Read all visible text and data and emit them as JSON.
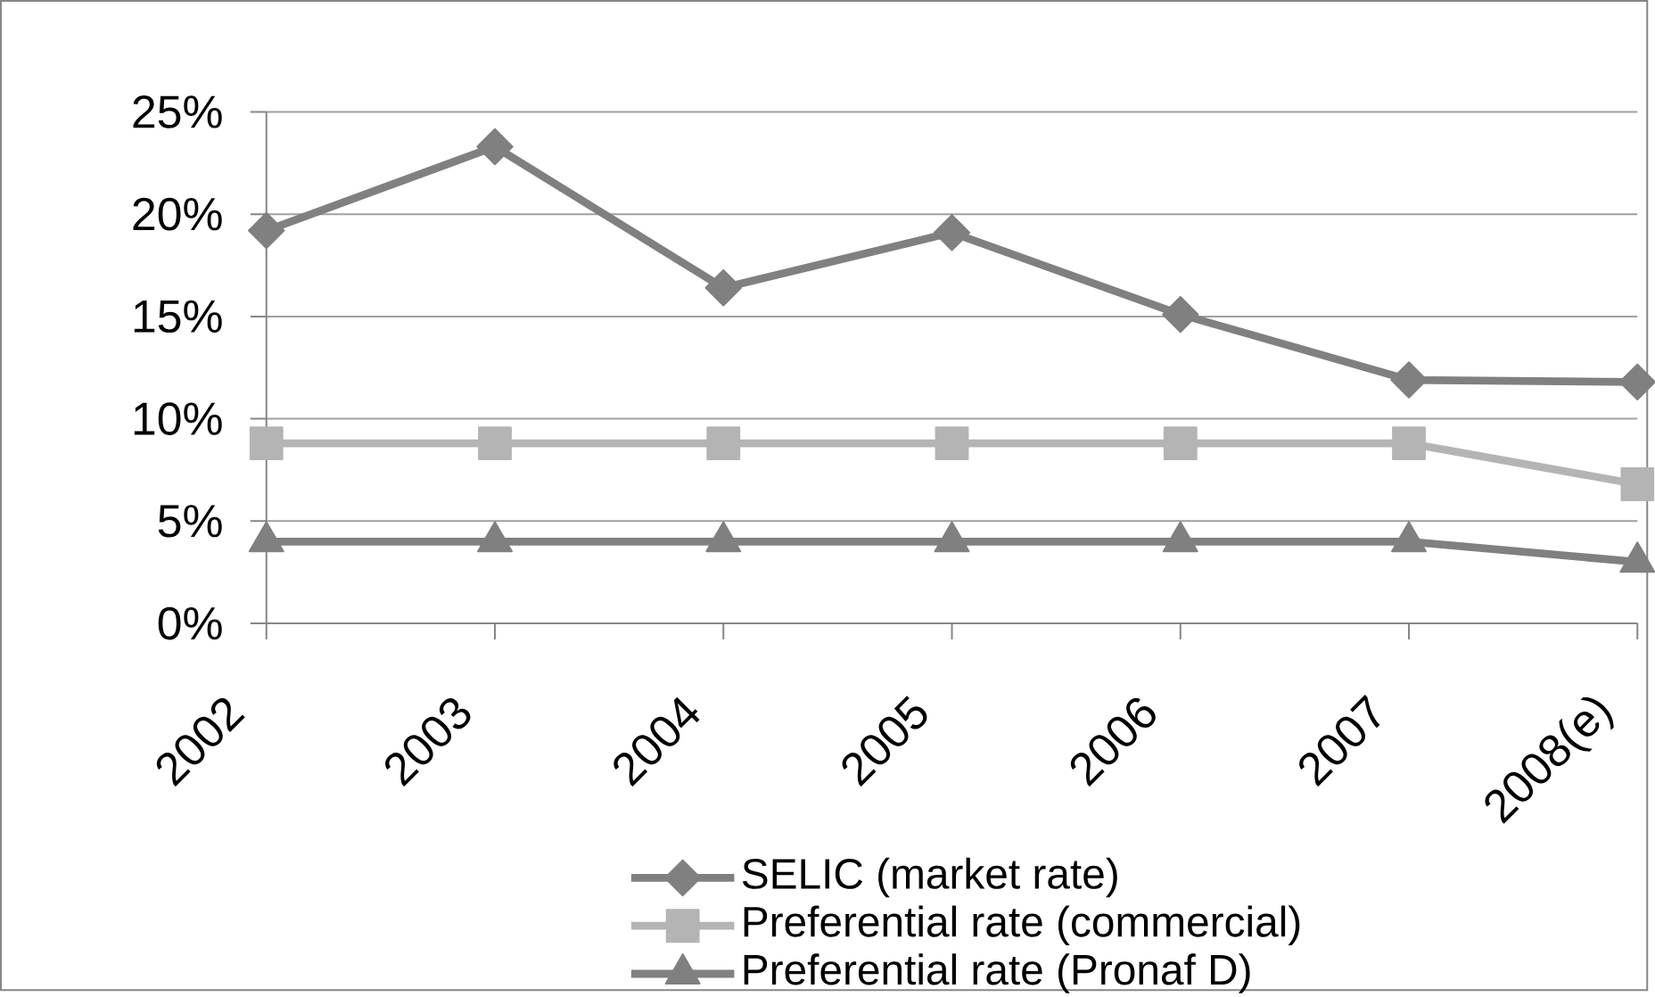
{
  "chart_data": {
    "type": "line",
    "categories": [
      "2002",
      "2003",
      "2004",
      "2005",
      "2006",
      "2007",
      "2008(e)"
    ],
    "series": [
      {
        "name": "SELIC (market rate)",
        "color": "#808080",
        "marker": "diamond",
        "values": [
          19.2,
          23.3,
          16.4,
          19.1,
          15.1,
          11.9,
          11.8
        ]
      },
      {
        "name": "Preferential rate (commercial)",
        "color": "#b4b4b4",
        "marker": "square",
        "values": [
          8.8,
          8.8,
          8.8,
          8.8,
          8.8,
          8.8,
          6.8
        ]
      },
      {
        "name": "Preferential rate (Pronaf D)",
        "color": "#808080",
        "marker": "triangle",
        "values": [
          4.0,
          4.0,
          4.0,
          4.0,
          4.0,
          4.0,
          3.0
        ]
      }
    ],
    "ylim": [
      0,
      25
    ],
    "yticks": [
      {
        "value": 0,
        "label": "0%"
      },
      {
        "value": 5,
        "label": "5%"
      },
      {
        "value": 10,
        "label": "10%"
      },
      {
        "value": 15,
        "label": "15%"
      },
      {
        "value": 20,
        "label": "20%"
      },
      {
        "value": 25,
        "label": "25%"
      }
    ],
    "grid": "y",
    "legend": "bottom",
    "line_style": "solid"
  }
}
